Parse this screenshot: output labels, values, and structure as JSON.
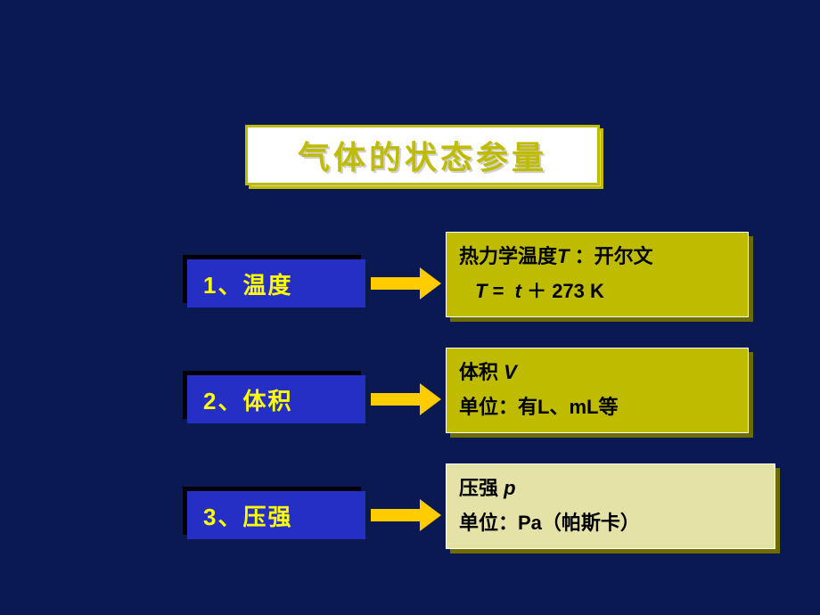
{
  "title": {
    "text": "气体的状态参量",
    "font_size": 36,
    "text_color": "#bfbc00",
    "box_bg": "#ffffff",
    "border_color": "#bfbc00",
    "shadow_color": "#d6d3a8"
  },
  "arrow": {
    "color": "#ffcc00"
  },
  "rows": [
    {
      "label": "1、温度",
      "label_bg": "#262fc4",
      "label_text_color": "#ffff00",
      "desc_bg": "#bfbc00",
      "desc_shadow": "#6e6c00",
      "lines": [
        "热力学温度<span class='ital'>T</span> ：开尔文",
        "<span style='padding-left:18px'><span class='ital'>T</span> =&nbsp;&nbsp;<span class='ital'>t</span> ＋ 273 K</span>"
      ]
    },
    {
      "label": "2、体积",
      "label_bg": "#262fc4",
      "label_text_color": "#ffff00",
      "desc_bg": "#bfbc00",
      "desc_shadow": "#6e6c00",
      "lines": [
        "体积 <span class='ital'>V</span>",
        "单位：有L、mL等"
      ]
    },
    {
      "label": "3、压强",
      "label_bg": "#262fc4",
      "label_text_color": "#ffff00",
      "desc_bg": "#e5e2a8",
      "desc_shadow": "#6e6c00",
      "lines": [
        "压强 <span class='ital'>p</span>",
        "单位：Pa（帕斯卡）"
      ]
    }
  ],
  "colors": {
    "page_bg": "#0a1952"
  }
}
